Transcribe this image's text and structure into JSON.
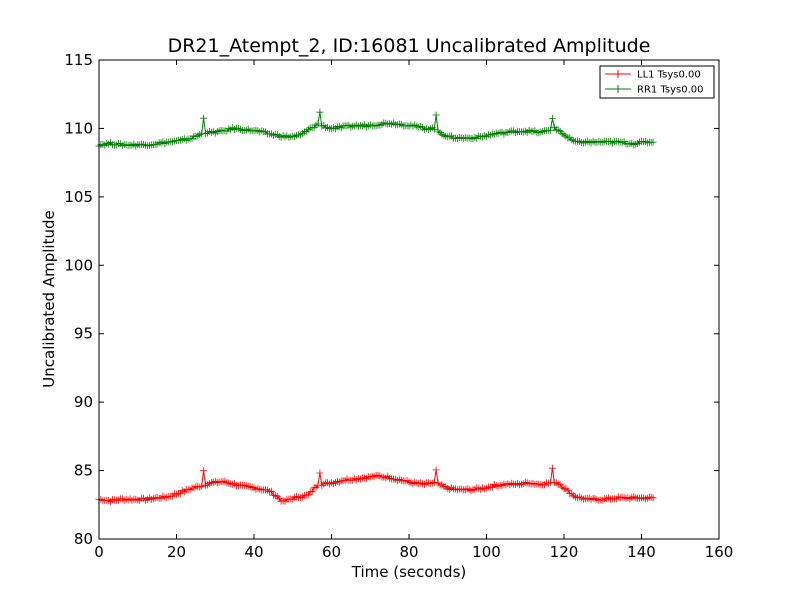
{
  "chart_data": {
    "type": "line",
    "title": "DR21_Atempt_2, ID:16081 Uncalibrated Amplitude",
    "xlabel": "Time (seconds)",
    "ylabel": "Uncalibrated Amplitude",
    "xlim": [
      0,
      160
    ],
    "ylim": [
      80,
      115
    ],
    "xticks": [
      "0",
      "20",
      "40",
      "60",
      "80",
      "100",
      "120",
      "140",
      "160"
    ],
    "yticks": [
      "80",
      "85",
      "90",
      "95",
      "100",
      "105",
      "110",
      "115"
    ],
    "grid": false,
    "legend_position": "top-right",
    "marker": "plus",
    "series": [
      {
        "name": "LL1 Tsys0.00",
        "color": "#ff0000",
        "x": [
          0,
          3,
          6,
          9,
          12,
          15,
          18,
          21,
          24,
          26.5,
          27,
          27.5,
          29,
          32,
          35,
          38,
          41,
          44,
          46,
          47.5,
          49,
          52,
          54,
          56.5,
          57,
          57.5,
          60,
          63,
          66,
          69,
          72,
          75,
          78,
          81,
          84,
          86.5,
          87,
          87.5,
          90,
          93,
          96,
          99,
          102,
          105,
          108,
          111,
          114,
          116.5,
          117,
          117.5,
          119,
          121,
          123,
          126,
          130,
          134,
          138,
          141,
          143
        ],
        "y": [
          82.9,
          82.8,
          82.9,
          82.9,
          82.9,
          83.0,
          83.1,
          83.4,
          83.7,
          83.9,
          85.0,
          84.0,
          84.1,
          84.2,
          84.0,
          83.8,
          83.7,
          83.5,
          83.1,
          82.7,
          82.9,
          83.1,
          83.2,
          84.0,
          84.9,
          84.0,
          84.1,
          84.3,
          84.4,
          84.5,
          84.6,
          84.5,
          84.3,
          84.1,
          84.0,
          84.1,
          85.0,
          84.0,
          83.7,
          83.6,
          83.6,
          83.7,
          83.9,
          84.0,
          84.0,
          84.1,
          84.0,
          84.1,
          85.1,
          84.2,
          84.0,
          83.5,
          83.1,
          82.9,
          82.9,
          83.0,
          83.0,
          83.0,
          83.0
        ]
      },
      {
        "name": "RR1 Tsys0.00",
        "color": "#007f00",
        "x": [
          0,
          3,
          6,
          9,
          12,
          15,
          18,
          21,
          24,
          26.5,
          27,
          27.5,
          29,
          32,
          35,
          38,
          41,
          44,
          46,
          48,
          50,
          52,
          54,
          56.5,
          57,
          57.5,
          60,
          63,
          66,
          69,
          72,
          75,
          78,
          81,
          84,
          86.5,
          87,
          87.5,
          90,
          93,
          96,
          99,
          102,
          105,
          108,
          111,
          114,
          116.5,
          117,
          117.5,
          119,
          121,
          123,
          126,
          130,
          134,
          138,
          141,
          143
        ],
        "y": [
          108.8,
          108.9,
          108.8,
          108.8,
          108.8,
          108.9,
          109.0,
          109.1,
          109.3,
          109.6,
          110.8,
          109.7,
          109.7,
          109.8,
          110.0,
          109.9,
          109.8,
          109.6,
          109.5,
          109.4,
          109.4,
          109.5,
          109.9,
          110.3,
          111.2,
          110.2,
          110.0,
          110.1,
          110.2,
          110.2,
          110.3,
          110.4,
          110.3,
          110.2,
          110.0,
          110.0,
          110.9,
          109.8,
          109.4,
          109.3,
          109.3,
          109.4,
          109.6,
          109.7,
          109.8,
          109.8,
          109.7,
          109.9,
          110.8,
          110.0,
          109.8,
          109.3,
          109.0,
          109.0,
          109.0,
          109.0,
          108.9,
          109.0,
          109.0
        ]
      }
    ]
  }
}
